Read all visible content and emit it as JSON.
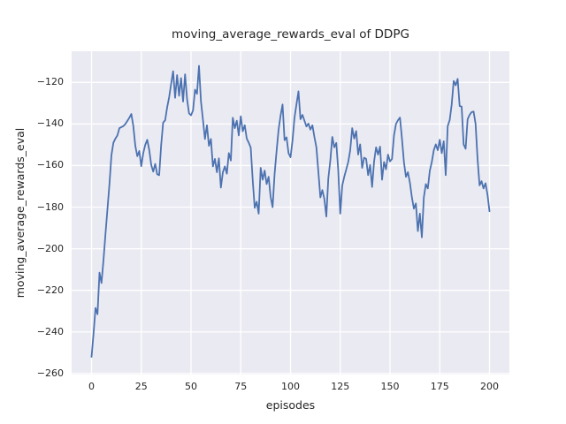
{
  "chart_data": {
    "type": "line",
    "title": "moving_average_rewards_eval of DDPG",
    "xlabel": "episodes",
    "ylabel": "moving_average_rewards_eval",
    "style": "seaborn-darkgrid",
    "grid": true,
    "legend": "none",
    "plot_bg_color": "#eaeaf2",
    "grid_color": "#ffffff",
    "line_color": "#4c72b0",
    "text_color": "#262626",
    "xlim": [
      -10,
      210
    ],
    "ylim": [
      -260.5,
      -105
    ],
    "x_ticks": [
      0,
      25,
      50,
      75,
      100,
      125,
      150,
      175,
      200
    ],
    "x_tick_labels": [
      "0",
      "25",
      "50",
      "75",
      "100",
      "125",
      "150",
      "175",
      "200"
    ],
    "y_ticks": [
      -260,
      -240,
      -220,
      -200,
      -180,
      -160,
      -140,
      -120
    ],
    "y_tick_labels": [
      "−260",
      "−240",
      "−220",
      "−200",
      "−180",
      "−160",
      "−140",
      "−120"
    ],
    "x_start": 0,
    "x_step": 1,
    "x_range": [
      0,
      200
    ],
    "y": [
      -252,
      -241,
      -228.5,
      -231.5,
      -211.5,
      -216.5,
      -205.5,
      -193,
      -181,
      -169,
      -155,
      -149,
      -147,
      -145.5,
      -142,
      -141.5,
      -141,
      -140,
      -138.5,
      -137,
      -135.2,
      -141,
      -150.5,
      -155.5,
      -153,
      -160.3,
      -154,
      -150,
      -147.6,
      -152.5,
      -159.7,
      -162.9,
      -159.2,
      -164.2,
      -164.6,
      -150,
      -139.3,
      -138.2,
      -132,
      -127.1,
      -120.7,
      -114.6,
      -127.4,
      -116.5,
      -126.4,
      -117.9,
      -129.2,
      -116.1,
      -128,
      -134.9,
      -135.8,
      -133.5,
      -123.5,
      -125.5,
      -112,
      -129.2,
      -138,
      -147.2,
      -140.6,
      -150.5,
      -147.2,
      -160.4,
      -156.8,
      -163.2,
      -156.5,
      -170.6,
      -163.2,
      -160.4,
      -163.9,
      -154,
      -157.6,
      -137,
      -142,
      -138.4,
      -145.5,
      -136.3,
      -143.5,
      -140.6,
      -147,
      -149,
      -151.3,
      -167,
      -180.3,
      -177.4,
      -183.1,
      -161.1,
      -166.8,
      -162.4,
      -168.9,
      -165.4,
      -175,
      -180,
      -164,
      -153,
      -142.7,
      -136,
      -130.6,
      -147.8,
      -146.4,
      -154,
      -156,
      -148,
      -137,
      -130.5,
      -124.3,
      -137.7,
      -135.6,
      -138.4,
      -141.2,
      -139.8,
      -142.7,
      -140.6,
      -146.2,
      -151.2,
      -163,
      -175.3,
      -171.8,
      -176,
      -184.5,
      -166.1,
      -157.6,
      -146.2,
      -151.2,
      -149.1,
      -162.5,
      -183.1,
      -169.6,
      -165.4,
      -161.9,
      -158.3,
      -152.6,
      -142,
      -147,
      -143.4,
      -154.7,
      -149.8,
      -161.1,
      -156.2,
      -156.8,
      -164.6,
      -159.7,
      -170.3,
      -158,
      -151.2,
      -154.7,
      -150.9,
      -166.8,
      -158.3,
      -161.8,
      -154.7,
      -158,
      -156.8,
      -145.5,
      -140,
      -138.2,
      -136.9,
      -147,
      -158.3,
      -165.4,
      -163.2,
      -168.2,
      -175.3,
      -180.7,
      -178.2,
      -191.5,
      -183.1,
      -194.5,
      -175.3,
      -168.9,
      -171,
      -162.5,
      -158.3,
      -152.6,
      -149.8,
      -152.6,
      -147.6,
      -154,
      -148.3,
      -164.6,
      -141,
      -138.1,
      -130.6,
      -119.3,
      -121.4,
      -118.3,
      -131.4,
      -131.6,
      -149.8,
      -151.9,
      -137.7,
      -135.6,
      -134.3,
      -134,
      -139.9,
      -156.8,
      -169.5,
      -167.5,
      -171,
      -168.5,
      -174,
      -182
    ]
  }
}
